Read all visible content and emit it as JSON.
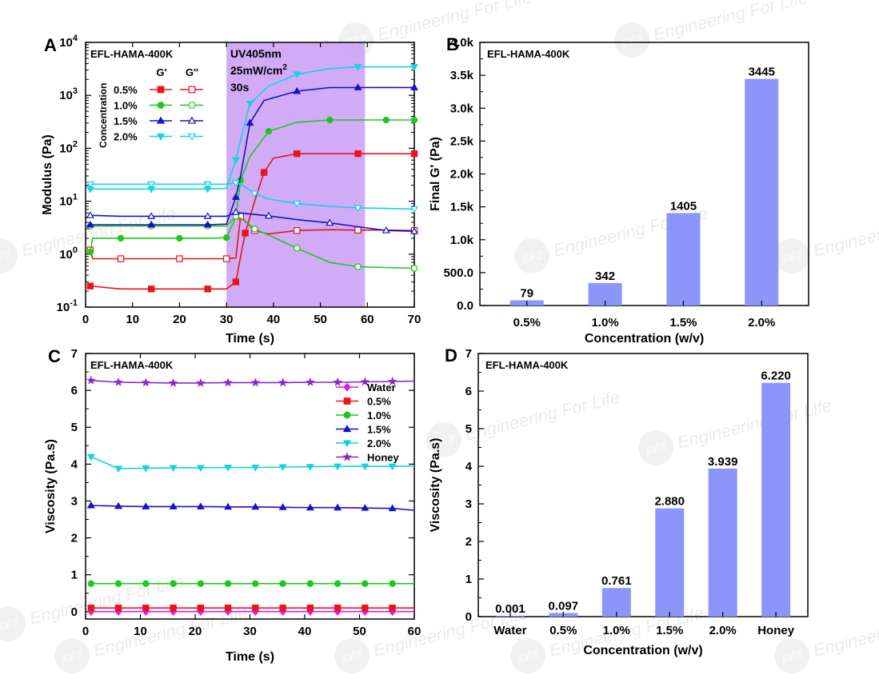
{
  "watermark": {
    "text": "Engineering For Life",
    "logo": "EF2"
  },
  "chart_data": [
    {
      "id": "A",
      "panel_label": "A",
      "type": "line",
      "xlabel": "Time (s)",
      "ylabel": "Modulus (Pa)",
      "xlim": [
        0,
        70
      ],
      "ylim_log10": [
        -1,
        4
      ],
      "x_ticks": [
        0,
        10,
        20,
        30,
        40,
        50,
        60,
        70
      ],
      "y_tick_exponents": [
        -1,
        0,
        1,
        2,
        3,
        4
      ],
      "y_scale": "log",
      "sample_label": "EFL-HAMA-400K",
      "legend": {
        "title": "Concentration",
        "col_g1": "G'",
        "col_g2": "G''",
        "labels": [
          "0.5%",
          "1.0%",
          "1.5%",
          "2.0%"
        ]
      },
      "uv_box": {
        "x_range": [
          30,
          59.5
        ],
        "color": "#c99cf3",
        "lines": [
          "UV405nm",
          "25mW/cm",
          "30s"
        ],
        "sup": "2"
      },
      "series": [
        {
          "conc": "0.5%",
          "color": "#e8141e",
          "G1": [
            [
              1,
              0.25
            ],
            [
              7.5,
              0.22
            ],
            [
              14,
              0.22
            ],
            [
              20,
              0.22
            ],
            [
              26,
              0.22
            ],
            [
              30,
              0.22
            ],
            [
              32,
              0.3
            ],
            [
              33,
              0.9
            ],
            [
              34,
              2.5
            ],
            [
              36,
              10
            ],
            [
              38,
              35
            ],
            [
              40,
              65
            ],
            [
              45,
              79
            ],
            [
              52,
              79
            ],
            [
              58,
              79
            ],
            [
              64,
              79
            ],
            [
              70,
              79
            ]
          ],
          "G2": [
            [
              1,
              1.2
            ],
            [
              1.5,
              0.82
            ],
            [
              7.5,
              0.82
            ],
            [
              14,
              0.82
            ],
            [
              20,
              0.82
            ],
            [
              26,
              0.82
            ],
            [
              30,
              0.82
            ],
            [
              32,
              0.85
            ],
            [
              33,
              5.2
            ],
            [
              34,
              4.2
            ],
            [
              36,
              2.8
            ],
            [
              39,
              2.4
            ],
            [
              45,
              2.8
            ],
            [
              52,
              2.9
            ],
            [
              58,
              2.85
            ],
            [
              64,
              2.85
            ],
            [
              70,
              2.8
            ]
          ]
        },
        {
          "conc": "1.0%",
          "color": "#1ec81e",
          "G1": [
            [
              1,
              1.1
            ],
            [
              1.5,
              2.0
            ],
            [
              7.5,
              2.0
            ],
            [
              14,
              2.0
            ],
            [
              20,
              2.0
            ],
            [
              26,
              2.0
            ],
            [
              30,
              2.05
            ],
            [
              32,
              5
            ],
            [
              33,
              25
            ],
            [
              35,
              70
            ],
            [
              39,
              210
            ],
            [
              45,
              310
            ],
            [
              52,
              342
            ],
            [
              58,
              342
            ],
            [
              64,
              342
            ],
            [
              70,
              342
            ]
          ],
          "G2": [
            [
              1,
              3.4
            ],
            [
              7.5,
              3.4
            ],
            [
              14,
              3.4
            ],
            [
              20,
              3.4
            ],
            [
              26,
              3.4
            ],
            [
              30,
              3.4
            ],
            [
              32,
              5.2
            ],
            [
              33,
              4.8
            ],
            [
              36,
              3.0
            ],
            [
              39,
              2.3
            ],
            [
              45,
              1.3
            ],
            [
              52,
              0.7
            ],
            [
              58,
              0.58
            ],
            [
              64,
              0.56
            ],
            [
              70,
              0.54
            ]
          ]
        },
        {
          "conc": "1.5%",
          "color": "#1414c8",
          "G1": [
            [
              1,
              3.6
            ],
            [
              7.5,
              3.6
            ],
            [
              14,
              3.6
            ],
            [
              20,
              3.6
            ],
            [
              26,
              3.6
            ],
            [
              30,
              3.7
            ],
            [
              32,
              12
            ],
            [
              33,
              30
            ],
            [
              35,
              300
            ],
            [
              38,
              800
            ],
            [
              45,
              1200
            ],
            [
              52,
              1400
            ],
            [
              58,
              1405
            ],
            [
              64,
              1405
            ],
            [
              70,
              1405
            ]
          ],
          "G2": [
            [
              1,
              5.4
            ],
            [
              7.5,
              5.2
            ],
            [
              14,
              5.2
            ],
            [
              20,
              5.2
            ],
            [
              26,
              5.2
            ],
            [
              30,
              5.2
            ],
            [
              32,
              6.2
            ],
            [
              33,
              6.0
            ],
            [
              39,
              5.3
            ],
            [
              45,
              4.5
            ],
            [
              52,
              3.9
            ],
            [
              58,
              3.3
            ],
            [
              64,
              2.8
            ],
            [
              70,
              2.7
            ]
          ]
        },
        {
          "conc": "2.0%",
          "color": "#14d2e6",
          "G1": [
            [
              1,
              17
            ],
            [
              7.5,
              17
            ],
            [
              14,
              17
            ],
            [
              20,
              17
            ],
            [
              26,
              17
            ],
            [
              30,
              17.5
            ],
            [
              32,
              60
            ],
            [
              33,
              140
            ],
            [
              35,
              700
            ],
            [
              39,
              1500
            ],
            [
              45,
              2500
            ],
            [
              52,
              3200
            ],
            [
              58,
              3445
            ],
            [
              64,
              3445
            ],
            [
              70,
              3445
            ]
          ],
          "G2": [
            [
              1,
              21
            ],
            [
              7.5,
              21
            ],
            [
              14,
              21
            ],
            [
              20,
              21
            ],
            [
              26,
              21
            ],
            [
              30,
              21
            ],
            [
              32,
              22
            ],
            [
              33,
              21
            ],
            [
              36,
              14
            ],
            [
              39,
              11
            ],
            [
              45,
              9
            ],
            [
              52,
              8
            ],
            [
              58,
              7.5
            ],
            [
              64,
              7.3
            ],
            [
              70,
              7.1
            ]
          ]
        }
      ]
    },
    {
      "id": "B",
      "panel_label": "B",
      "type": "bar",
      "xlabel": "Concentration (w/v)",
      "ylabel": "Final G' (Pa)",
      "sample_label": "EFL-HAMA-400K",
      "categories": [
        "0.5%",
        "1.0%",
        "1.5%",
        "2.0%"
      ],
      "values": [
        79,
        342,
        1405,
        3445
      ],
      "value_labels": [
        "79",
        "342",
        "1405",
        "3445"
      ],
      "ylim": [
        0,
        4000
      ],
      "y_ticks": [
        0,
        500,
        1000,
        1500,
        2000,
        2500,
        3000,
        3500,
        4000
      ],
      "y_tick_labels": [
        "0.0",
        "500.0",
        "1.0k",
        "1.5k",
        "2.0k",
        "2.5k",
        "3.0k",
        "3.5k",
        "4.0k"
      ],
      "bar_color": "#8c96fa"
    },
    {
      "id": "C",
      "panel_label": "C",
      "type": "scatter",
      "xlabel": "Time (s)",
      "ylabel": "Viscosity (Pa.s)",
      "xlim": [
        0,
        60
      ],
      "ylim": [
        -0.2,
        7
      ],
      "x_ticks": [
        0,
        10,
        20,
        30,
        40,
        50,
        60
      ],
      "y_ticks": [
        0,
        1,
        2,
        3,
        4,
        5,
        6,
        7
      ],
      "sample_label": "EFL-HAMA-400K",
      "series": [
        {
          "name": "Water",
          "color": "#e614e6",
          "marker": "diamond",
          "x": [
            1,
            6,
            11,
            16,
            21,
            26,
            31,
            36,
            41,
            46,
            51,
            56,
            60
          ],
          "y": [
            0.001,
            0.001,
            0.001,
            0.001,
            0.001,
            0.001,
            0.001,
            0.001,
            0.001,
            0.001,
            0.001,
            0.001,
            0.001
          ]
        },
        {
          "name": "0.5%",
          "color": "#e8141e",
          "marker": "square",
          "x": [
            1,
            6,
            11,
            16,
            21,
            26,
            31,
            36,
            41,
            46,
            51,
            56,
            60
          ],
          "y": [
            0.1,
            0.1,
            0.1,
            0.1,
            0.1,
            0.1,
            0.1,
            0.1,
            0.1,
            0.1,
            0.1,
            0.1,
            0.1
          ]
        },
        {
          "name": "1.0%",
          "color": "#1ec81e",
          "marker": "circle",
          "x": [
            1,
            6,
            11,
            16,
            21,
            26,
            31,
            36,
            41,
            46,
            51,
            56,
            60
          ],
          "y": [
            0.76,
            0.76,
            0.76,
            0.76,
            0.76,
            0.76,
            0.76,
            0.76,
            0.76,
            0.76,
            0.76,
            0.76,
            0.76
          ]
        },
        {
          "name": "1.5%",
          "color": "#1414c8",
          "marker": "triangle-up",
          "x": [
            1,
            6,
            11,
            16,
            21,
            26,
            31,
            36,
            41,
            46,
            51,
            56,
            60
          ],
          "y": [
            2.88,
            2.86,
            2.85,
            2.85,
            2.85,
            2.84,
            2.84,
            2.83,
            2.82,
            2.82,
            2.81,
            2.8,
            2.75
          ]
        },
        {
          "name": "2.0%",
          "color": "#14d2e6",
          "marker": "triangle-down",
          "x": [
            1,
            6,
            11,
            16,
            21,
            26,
            31,
            36,
            41,
            46,
            51,
            56,
            60
          ],
          "y": [
            4.2,
            3.88,
            3.89,
            3.9,
            3.9,
            3.91,
            3.91,
            3.92,
            3.93,
            3.94,
            3.94,
            3.94,
            3.95
          ]
        },
        {
          "name": "Honey",
          "color": "#8c28c8",
          "marker": "star",
          "x": [
            1,
            6,
            11,
            16,
            21,
            26,
            31,
            36,
            41,
            46,
            51,
            56,
            60
          ],
          "y": [
            6.27,
            6.22,
            6.21,
            6.2,
            6.2,
            6.21,
            6.21,
            6.21,
            6.22,
            6.22,
            6.23,
            6.24,
            6.25
          ]
        }
      ]
    },
    {
      "id": "D",
      "panel_label": "D",
      "type": "bar",
      "xlabel": "Concentration (w/v)",
      "ylabel": "Viscosity (Pa.s)",
      "sample_label": "EFL-HAMA-400K",
      "categories": [
        "Water",
        "0.5%",
        "1.0%",
        "1.5%",
        "2.0%",
        "Honey"
      ],
      "values": [
        0.001,
        0.097,
        0.761,
        2.88,
        3.939,
        6.22
      ],
      "value_labels": [
        "0.001",
        "0.097",
        "0.761",
        "2.880",
        "3.939",
        "6.220"
      ],
      "ylim": [
        0,
        7
      ],
      "y_ticks": [
        0,
        1,
        2,
        3,
        4,
        5,
        6,
        7
      ],
      "bar_color": "#8c96fa"
    }
  ]
}
